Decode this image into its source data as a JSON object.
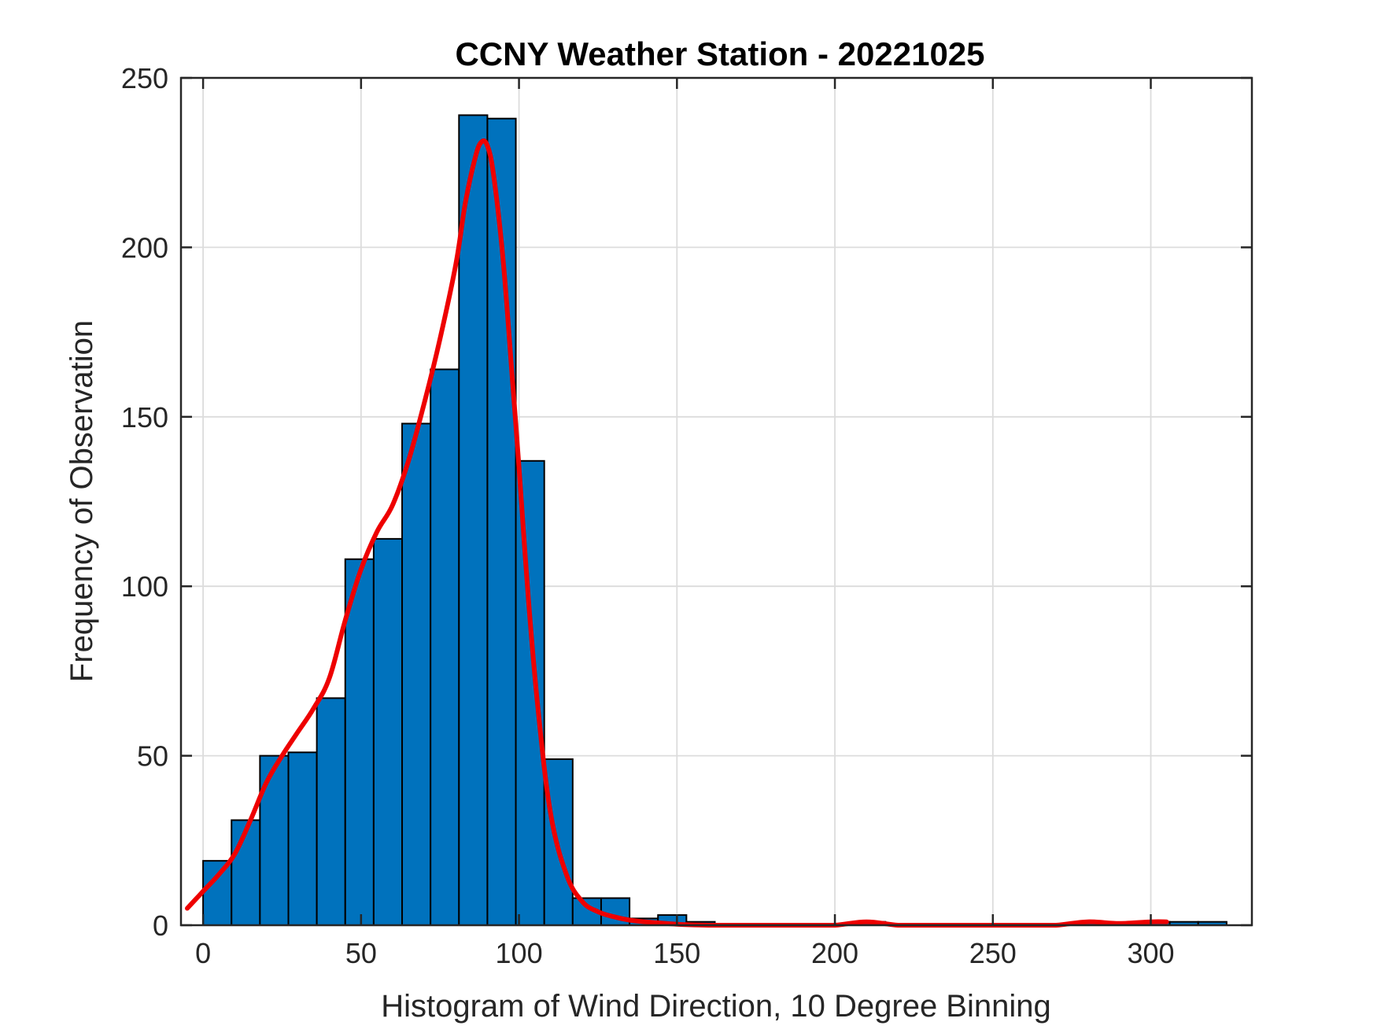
{
  "chart_data": {
    "type": "bar",
    "title": "CCNY Weather Station - 20221025",
    "xlabel": "Histogram of Wind Direction, 10 Degree Binning",
    "ylabel": "Frequency of Observation",
    "xlim": [
      -7,
      332
    ],
    "ylim": [
      0,
      250
    ],
    "xticks": [
      0,
      50,
      100,
      150,
      200,
      250,
      300
    ],
    "yticks": [
      0,
      50,
      100,
      150,
      200,
      250
    ],
    "xtick_labels": [
      "0",
      "50",
      "100",
      "150",
      "200",
      "250",
      "300"
    ],
    "ytick_labels": [
      "0",
      "50",
      "100",
      "150",
      "200",
      "250"
    ],
    "grid": true,
    "bin_width": 9,
    "bin_start": 0,
    "bins": [
      {
        "x0": 0,
        "x1": 9,
        "count": 19
      },
      {
        "x0": 9,
        "x1": 18,
        "count": 31
      },
      {
        "x0": 18,
        "x1": 27,
        "count": 50
      },
      {
        "x0": 27,
        "x1": 36,
        "count": 51
      },
      {
        "x0": 36,
        "x1": 45,
        "count": 67
      },
      {
        "x0": 45,
        "x1": 54,
        "count": 108
      },
      {
        "x0": 54,
        "x1": 63,
        "count": 114
      },
      {
        "x0": 63,
        "x1": 72,
        "count": 148
      },
      {
        "x0": 72,
        "x1": 81,
        "count": 164
      },
      {
        "x0": 81,
        "x1": 90,
        "count": 239
      },
      {
        "x0": 90,
        "x1": 99,
        "count": 238
      },
      {
        "x0": 99,
        "x1": 108,
        "count": 137
      },
      {
        "x0": 108,
        "x1": 117,
        "count": 49
      },
      {
        "x0": 117,
        "x1": 126,
        "count": 8
      },
      {
        "x0": 126,
        "x1": 135,
        "count": 8
      },
      {
        "x0": 135,
        "x1": 144,
        "count": 2
      },
      {
        "x0": 144,
        "x1": 153,
        "count": 3
      },
      {
        "x0": 153,
        "x1": 162,
        "count": 1
      },
      {
        "x0": 162,
        "x1": 171,
        "count": 0
      },
      {
        "x0": 171,
        "x1": 180,
        "count": 0
      },
      {
        "x0": 180,
        "x1": 189,
        "count": 0
      },
      {
        "x0": 189,
        "x1": 198,
        "count": 0
      },
      {
        "x0": 198,
        "x1": 207,
        "count": 0
      },
      {
        "x0": 207,
        "x1": 216,
        "count": 1
      },
      {
        "x0": 216,
        "x1": 225,
        "count": 0
      },
      {
        "x0": 225,
        "x1": 234,
        "count": 0
      },
      {
        "x0": 234,
        "x1": 243,
        "count": 0
      },
      {
        "x0": 243,
        "x1": 252,
        "count": 0
      },
      {
        "x0": 252,
        "x1": 261,
        "count": 0
      },
      {
        "x0": 261,
        "x1": 270,
        "count": 0
      },
      {
        "x0": 270,
        "x1": 279,
        "count": 0
      },
      {
        "x0": 279,
        "x1": 288,
        "count": 1
      },
      {
        "x0": 288,
        "x1": 297,
        "count": 0
      },
      {
        "x0": 297,
        "x1": 306,
        "count": 1
      },
      {
        "x0": 306,
        "x1": 315,
        "count": 1
      },
      {
        "x0": 315,
        "x1": 324,
        "count": 1
      }
    ],
    "fit_curve": {
      "x": [
        -5,
        0,
        5,
        10,
        15,
        20,
        25,
        30,
        35,
        40,
        45,
        50,
        55,
        60,
        65,
        70,
        75,
        80,
        83,
        86,
        88,
        90,
        92,
        95,
        98,
        100,
        103,
        106,
        110,
        115,
        120,
        125,
        130,
        135,
        140,
        150,
        160,
        170,
        180,
        190,
        200,
        210,
        220,
        230,
        240,
        250,
        260,
        270,
        280,
        290,
        300,
        305
      ],
      "y": [
        5,
        10,
        15,
        21,
        31,
        42,
        50,
        57,
        64,
        73,
        90,
        105,
        116,
        124,
        137,
        154,
        173,
        195,
        213,
        226,
        231,
        230,
        221,
        196,
        160,
        135,
        96,
        64,
        33,
        15,
        7,
        4,
        2.5,
        1.5,
        1,
        0.3,
        0,
        0,
        0,
        0,
        0,
        1,
        0,
        0,
        0,
        0,
        0,
        0,
        1,
        0.5,
        1,
        1
      ]
    },
    "colors": {
      "bar_fill": "#0072BD",
      "bar_edge": "#000000",
      "fit_line": "#EE0000",
      "grid": "#dcdcdc",
      "axes": "#262626"
    }
  }
}
